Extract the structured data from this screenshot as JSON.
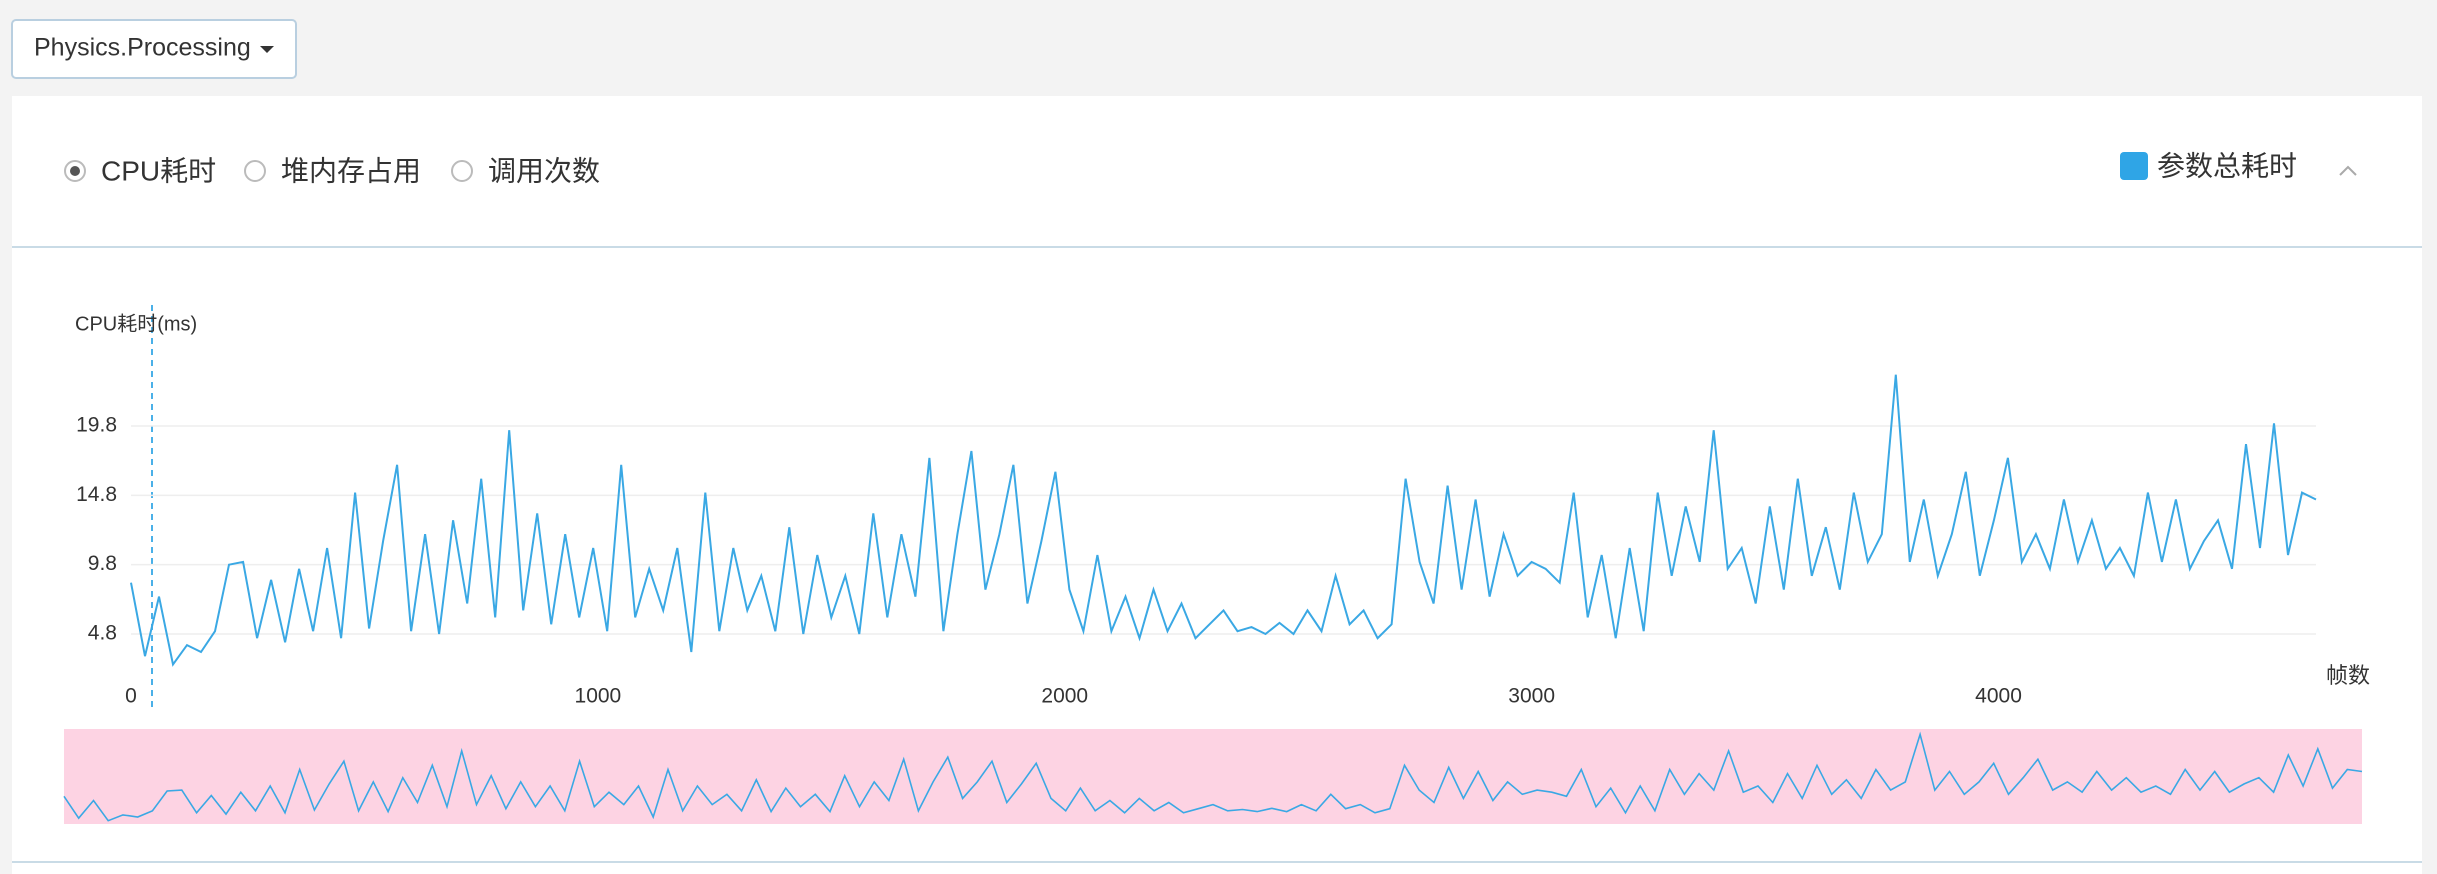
{
  "dropdown": "Physics.Processing",
  "metric_options": [
    "CPU耗时",
    "堆内存占用",
    "调用次数"
  ],
  "selected_metric": 0,
  "chart_data": {
    "type": "line",
    "y_label": "CPU耗时(ms)",
    "x_label": "帧数",
    "xlim": [
      0,
      4680
    ],
    "xticks": [
      0,
      1000,
      2000,
      3000,
      4000
    ],
    "ylim": [
      1.8,
      24.8
    ],
    "yticks": [
      4.8,
      9.8,
      14.8,
      19.8
    ],
    "grid": true,
    "legend": "top-right",
    "x": [
      0,
      30,
      60,
      90,
      120,
      150,
      180,
      210,
      240,
      270,
      300,
      330,
      360,
      390,
      420,
      450,
      480,
      510,
      540,
      570,
      600,
      630,
      660,
      690,
      720,
      750,
      780,
      810,
      840,
      870,
      900,
      930,
      960,
      990,
      1020,
      1050,
      1080,
      1110,
      1140,
      1170,
      1200,
      1230,
      1260,
      1290,
      1320,
      1350,
      1380,
      1410,
      1440,
      1470,
      1500,
      1530,
      1560,
      1590,
      1620,
      1650,
      1680,
      1710,
      1740,
      1770,
      1800,
      1830,
      1860,
      1890,
      1920,
      1950,
      1980,
      2010,
      2040,
      2070,
      2100,
      2130,
      2160,
      2190,
      2220,
      2250,
      2280,
      2310,
      2340,
      2370,
      2400,
      2430,
      2460,
      2490,
      2520,
      2550,
      2580,
      2610,
      2640,
      2670,
      2700,
      2730,
      2760,
      2790,
      2820,
      2850,
      2880,
      2910,
      2940,
      2970,
      3000,
      3030,
      3060,
      3090,
      3120,
      3150,
      3180,
      3210,
      3240,
      3270,
      3300,
      3330,
      3360,
      3390,
      3420,
      3450,
      3480,
      3510,
      3540,
      3570,
      3600,
      3630,
      3660,
      3690,
      3720,
      3750,
      3780,
      3810,
      3840,
      3870,
      3900,
      3930,
      3960,
      3990,
      4020,
      4050,
      4080,
      4110,
      4140,
      4170,
      4200,
      4230,
      4260,
      4290,
      4320,
      4350,
      4380,
      4410,
      4440,
      4470,
      4500,
      4530,
      4560,
      4590,
      4620,
      4650,
      4680
    ],
    "series": [
      {
        "name": "参数总耗时",
        "color": "#3aa8e4",
        "values": [
          8.5,
          3.2,
          7.5,
          2.6,
          4.0,
          3.5,
          5.0,
          9.8,
          10.0,
          4.5,
          8.7,
          4.2,
          9.5,
          5.0,
          11.0,
          4.5,
          15.0,
          5.2,
          11.5,
          17.0,
          5.0,
          12.0,
          4.8,
          13.0,
          7.0,
          16.0,
          6.0,
          19.5,
          6.5,
          13.5,
          5.5,
          12.0,
          6.0,
          11.0,
          5.0,
          17.0,
          6.0,
          9.5,
          6.5,
          11.0,
          3.5,
          15.0,
          5.0,
          11.0,
          6.5,
          9.0,
          5.0,
          12.5,
          4.8,
          10.5,
          6.0,
          9.0,
          4.8,
          13.5,
          6.0,
          12.0,
          7.5,
          17.5,
          5.0,
          12.0,
          18.0,
          8.0,
          12.0,
          17.0,
          7.0,
          11.5,
          16.5,
          8.0,
          5.0,
          10.5,
          5.0,
          7.5,
          4.5,
          8.0,
          5.0,
          7.0,
          4.5,
          5.5,
          6.5,
          5.0,
          5.3,
          4.8,
          5.6,
          4.8,
          6.5,
          5.0,
          9.0,
          5.5,
          6.5,
          4.5,
          5.5,
          16.0,
          10.0,
          7.0,
          15.5,
          8.0,
          14.5,
          7.5,
          12.0,
          9.0,
          10.0,
          9.5,
          8.5,
          15.0,
          6.0,
          10.5,
          4.5,
          11.0,
          5.0,
          15.0,
          9.0,
          14.0,
          10.0,
          19.5,
          9.5,
          11.0,
          7.0,
          14.0,
          8.0,
          16.0,
          9.0,
          12.5,
          8.0,
          15.0,
          10.0,
          12.0,
          23.5,
          10.0,
          14.5,
          9.0,
          12.0,
          16.5,
          9.0,
          13.0,
          17.5,
          10.0,
          12.0,
          9.5,
          14.5,
          10.0,
          13.0,
          9.5,
          11.0,
          9.0,
          15.0,
          10.0,
          14.5,
          9.5,
          11.5,
          13.0,
          9.5,
          18.5,
          11.0,
          20.0,
          10.5,
          15.0,
          14.5
        ]
      }
    ]
  }
}
